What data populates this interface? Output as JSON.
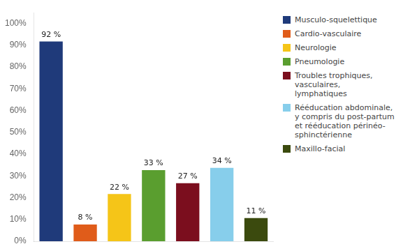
{
  "chart_data": {
    "type": "bar",
    "categories": [
      "Musculo-squelettique",
      "Cardio-vasculaire",
      "Neurologie",
      "Pneumologie",
      "Troubles trophiques,\nvasculaires,\nlymphatiques",
      "Rééducation abdominale,\ny compris du post-partum\net rééducation périnéo-\nsphinctérienne",
      "Maxillo-facial"
    ],
    "values": [
      92,
      8,
      22,
      33,
      27,
      34,
      11
    ],
    "colors": [
      "#1F3A7A",
      "#E05C1A",
      "#F5C518",
      "#5A9E2F",
      "#7B0E1E",
      "#87CEEB",
      "#3B4A0E"
    ],
    "value_labels": [
      "92 %",
      "8 %",
      "22 %",
      "33 %",
      "27 %",
      "34 %",
      "11 %"
    ],
    "data_labels": true,
    "ylim": [
      0,
      105
    ],
    "yticks": [
      {
        "value": 0,
        "label": "0%"
      },
      {
        "value": 10,
        "label": "10%"
      },
      {
        "value": 20,
        "label": "20%"
      },
      {
        "value": 30,
        "label": "30%"
      },
      {
        "value": 40,
        "label": "40%"
      },
      {
        "value": 50,
        "label": "50%"
      },
      {
        "value": 60,
        "label": "60%"
      },
      {
        "value": 70,
        "label": "70%"
      },
      {
        "value": 80,
        "label": "80%"
      },
      {
        "value": 90,
        "label": "90%"
      },
      {
        "value": 100,
        "label": "100%"
      }
    ],
    "grid": false,
    "tick_labels": "y",
    "legend": "right"
  }
}
